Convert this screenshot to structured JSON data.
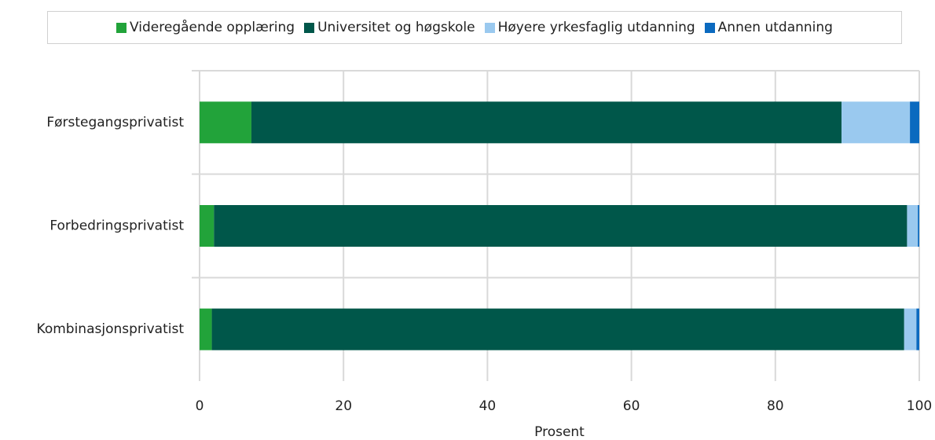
{
  "chart_data": {
    "type": "stacked_barh",
    "categories": [
      "Førstegangsprivatist",
      "Forbedringsprivatist",
      "Kombinasjonsprivatist"
    ],
    "series": [
      {
        "name": "Videregående opplæring",
        "color": "#22a33a",
        "values": [
          7.2,
          2.0,
          1.7
        ]
      },
      {
        "name": "Universitet og høgskole",
        "color": "#00574a",
        "values": [
          82.0,
          96.3,
          96.2
        ]
      },
      {
        "name": "Høyere yrkesfaglig utdanning",
        "color": "#9ac9ef",
        "values": [
          9.5,
          1.5,
          1.7
        ]
      },
      {
        "name": "Annen utdanning",
        "color": "#0b6abf",
        "values": [
          1.3,
          0.2,
          0.4
        ]
      }
    ],
    "xlabel": "Prosent",
    "xlim": [
      0,
      100
    ],
    "xticks": [
      0,
      20,
      40,
      60,
      80,
      100
    ],
    "grid": true,
    "legend": "top"
  }
}
